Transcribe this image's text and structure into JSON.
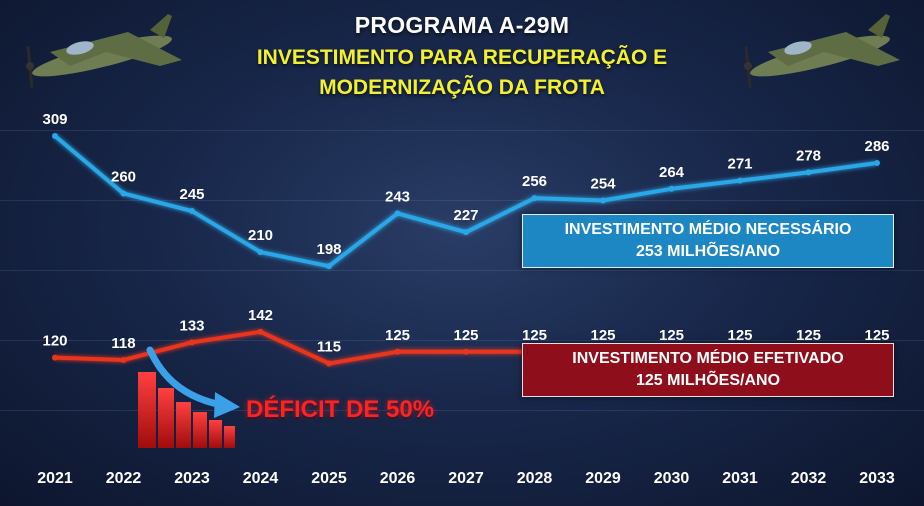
{
  "header": {
    "title": "PROGRAMA A-29M",
    "subtitle_line1": "INVESTIMENTO PARA RECUPERAÇÃO E",
    "subtitle_line2": "MODERNIZAÇÃO DA FROTA"
  },
  "legend": {
    "necessario": {
      "line1": "INVESTIMENTO MÉDIO NECESSÁRIO",
      "line2": "253 MILHÕES/ANO"
    },
    "efetivado": {
      "line1": "INVESTIMENTO MÉDIO EFETIVADO",
      "line2": "125 MILHÕES/ANO"
    }
  },
  "deficit": {
    "label": "DÉFICIT DE 50%"
  },
  "colors": {
    "necessario_line": "#2aa7e6",
    "efetivado_line": "#e8361c",
    "necessario_box": "#1d87c4",
    "efetivado_box": "#8e0f1b",
    "title": "#ffffff",
    "subtitle": "#f3f031",
    "deficit": "#ff2222"
  },
  "icons": [
    "aircraft-left-icon",
    "aircraft-right-icon",
    "declining-bars-icon",
    "curved-arrow-icon"
  ],
  "chart_data": {
    "type": "line",
    "x": [
      "2021",
      "2022",
      "2023",
      "2024",
      "2025",
      "2026",
      "2027",
      "2028",
      "2029",
      "2030",
      "2031",
      "2032",
      "2033"
    ],
    "series": [
      {
        "name": "INVESTIMENTO MÉDIO NECESSÁRIO",
        "values": [
          309,
          260,
          245,
          210,
          198,
          243,
          227,
          256,
          254,
          264,
          271,
          278,
          286
        ]
      },
      {
        "name": "INVESTIMENTO MÉDIO EFETIVADO",
        "values": [
          120,
          118,
          133,
          142,
          115,
          125,
          125,
          125,
          125,
          125,
          125,
          125,
          125
        ]
      }
    ],
    "ylim": [
      0,
      340
    ],
    "grid": true
  }
}
